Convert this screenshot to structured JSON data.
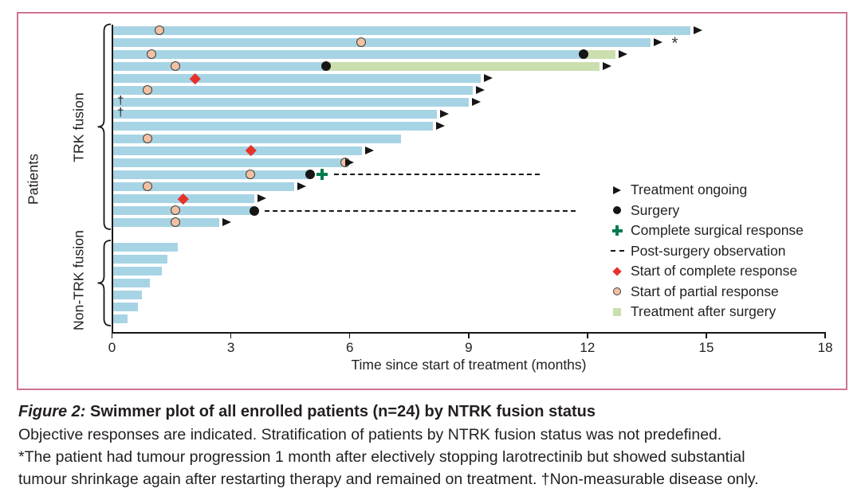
{
  "chart_data": {
    "type": "swimmer",
    "xlabel": "Time since start of treatment (months)",
    "ylabel": "Patients",
    "xlim": [
      0,
      18
    ],
    "xticks": [
      0,
      3,
      6,
      9,
      12,
      15,
      18
    ],
    "x_unit": "months",
    "groups": [
      {
        "label": "TRK fusion",
        "patients": [
          {
            "bar": 14.6,
            "ongoing": true,
            "pr": 1.2
          },
          {
            "bar": 13.6,
            "ongoing": true,
            "pr": 6.3,
            "asterisk": true
          },
          {
            "bar": 11.9,
            "ongoing": true,
            "pr": 1.0,
            "surgery": 11.9,
            "post_surgery_treatment": [
              11.9,
              12.7
            ]
          },
          {
            "bar": 5.4,
            "ongoing": true,
            "pr": 1.6,
            "surgery": 5.4,
            "post_surgery_treatment": [
              5.4,
              12.3
            ]
          },
          {
            "bar": 9.3,
            "ongoing": true,
            "cr": 2.1
          },
          {
            "bar": 9.1,
            "ongoing": true,
            "pr": 0.9
          },
          {
            "bar": 9.0,
            "ongoing": true,
            "dagger": true
          },
          {
            "bar": 8.2,
            "ongoing": true,
            "dagger": true
          },
          {
            "bar": 8.1,
            "ongoing": true
          },
          {
            "bar": 7.3,
            "ongoing": false,
            "pr": 0.9
          },
          {
            "bar": 6.3,
            "ongoing": true,
            "cr": 3.5
          },
          {
            "bar": 5.8,
            "ongoing": true,
            "pr": 5.9
          },
          {
            "bar": 5.0,
            "ongoing": false,
            "pr": 3.5,
            "surgery": 5.0,
            "surgical_cr": 5.3,
            "post_surgery_observation": [
              5.6,
              10.8
            ]
          },
          {
            "bar": 4.6,
            "ongoing": true,
            "pr": 0.9
          },
          {
            "bar": 3.6,
            "ongoing": true,
            "cr": 1.8
          },
          {
            "bar": 3.6,
            "ongoing": false,
            "pr": 1.6,
            "surgery": 3.6,
            "post_surgery_observation": [
              3.85,
              11.7
            ]
          },
          {
            "bar": 2.7,
            "ongoing": true,
            "pr": 1.6
          }
        ]
      },
      {
        "label": "Non-TRK fusion",
        "patients": [
          {
            "bar": 1.65
          },
          {
            "bar": 1.4
          },
          {
            "bar": 1.25
          },
          {
            "bar": 0.95
          },
          {
            "bar": 0.75
          },
          {
            "bar": 0.65
          },
          {
            "bar": 0.4
          }
        ]
      }
    ]
  },
  "legend": {
    "items": [
      {
        "icon": "treatment-ongoing-arrow-icon",
        "label": "Treatment ongoing"
      },
      {
        "icon": "surgery-dot-icon",
        "label": "Surgery"
      },
      {
        "icon": "complete-surgical-response-cross-icon",
        "label": "Complete surgical response"
      },
      {
        "icon": "post-surgery-observation-dash-icon",
        "label": "Post-surgery observation"
      },
      {
        "icon": "complete-response-diamond-icon",
        "label": "Start of complete response"
      },
      {
        "icon": "partial-response-circle-icon",
        "label": "Start of partial response"
      },
      {
        "icon": "treatment-after-surgery-square-icon",
        "label": "Treatment after surgery"
      }
    ]
  },
  "colors": {
    "bar_blue": "#a7d4e4",
    "treatment_after_surgery_green": "#cbdfae",
    "partial_response_fill": "#f2c1a2",
    "partial_response_outline": "#3f3f3f",
    "complete_response_red": "#e6332a",
    "surgical_response_green": "#007b4e",
    "marker_black": "#161616",
    "axis": "#161616",
    "panel_border_pink": "#cf7390",
    "text": "#231f20"
  },
  "caption": {
    "figure_label": "Figure 2:",
    "title_rest": " Swimmer plot of all enrolled patients (n=24) by NTRK fusion status",
    "line1": "Objective responses are indicated. Stratification of patients by NTRK fusion status was not predefined.",
    "line2": "*The patient had tumour progression 1 month after electively stopping larotrectinib but showed substantial",
    "line3": "tumour shrinkage again after restarting therapy and remained on treatment. †Non-measurable disease only."
  }
}
